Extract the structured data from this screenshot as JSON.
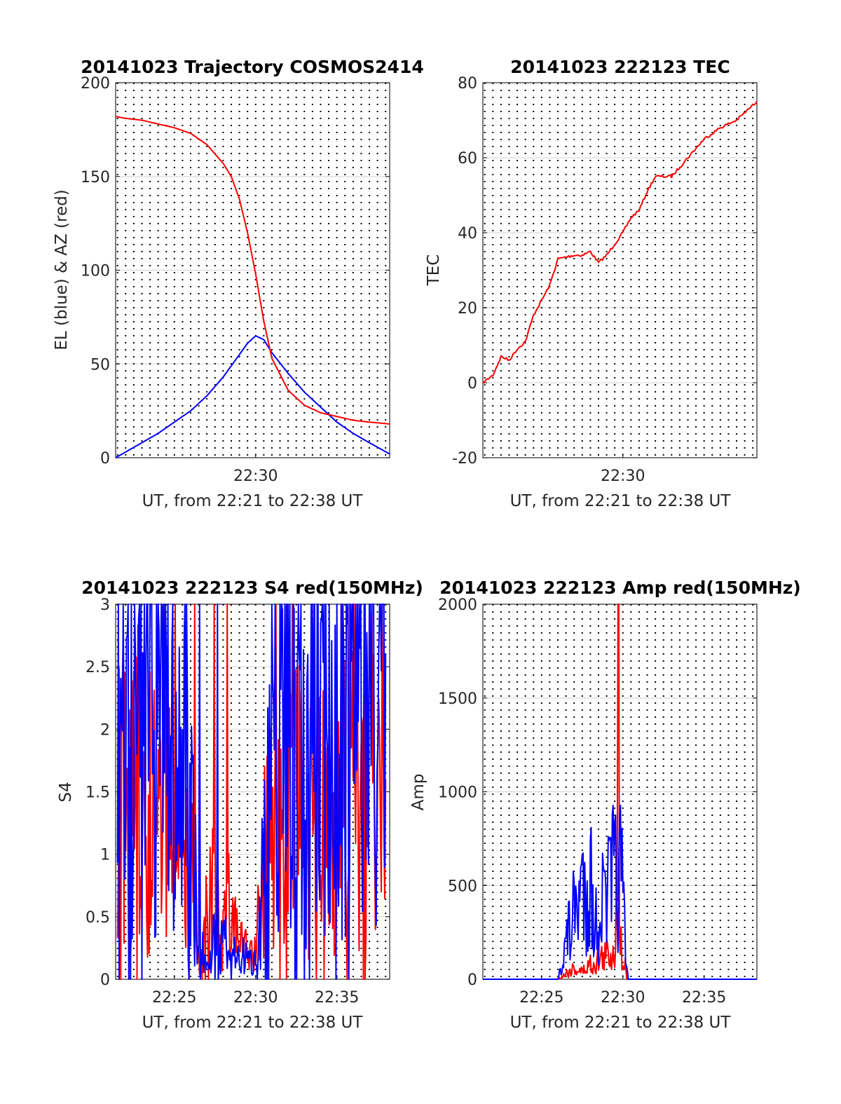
{
  "colors": {
    "el": "#0000ff",
    "az": "#ff0000",
    "series": "#ff0000",
    "grid": "#d9d9d9",
    "axis": "#262626"
  },
  "chart_data": [
    {
      "type": "line",
      "title": "20141023 Trajectory COSMOS2414",
      "xlabel": "UT, from 22:21 to 22:38 UT",
      "ylabel": "EL (blue) & AZ (red)",
      "xlim": [
        "22:21:23",
        "22:38:15"
      ],
      "ylim": [
        0,
        200
      ],
      "yticks": [
        0,
        50,
        100,
        150,
        200
      ],
      "xticks": [
        "22:30"
      ],
      "grid": "dotted vertical every 30 s, solid horizontal",
      "series": [
        {
          "color": "blue",
          "x": [
            "22:21:23",
            "22:23:00",
            "22:24:00",
            "22:25:00",
            "22:26:00",
            "22:27:00",
            "22:28:00",
            "22:29:00",
            "22:29:30",
            "22:30:00",
            "22:30:30",
            "22:31:00",
            "22:32:00",
            "22:33:00",
            "22:34:00",
            "22:35:00",
            "22:36:00",
            "22:37:00",
            "22:38:15"
          ],
          "values": [
            0,
            8,
            13,
            19,
            25,
            33,
            43,
            55,
            61,
            65,
            63,
            56,
            45,
            35,
            27,
            19,
            13,
            8,
            2
          ]
        },
        {
          "color": "red",
          "x": [
            "22:21:23",
            "22:22:00",
            "22:23:00",
            "22:24:00",
            "22:25:00",
            "22:26:00",
            "22:27:00",
            "22:28:00",
            "22:28:30",
            "22:29:00",
            "22:29:30",
            "22:30:00",
            "22:30:30",
            "22:31:00",
            "22:32:00",
            "22:33:00",
            "22:34:00",
            "22:35:00",
            "22:36:00",
            "22:37:00",
            "22:38:15"
          ],
          "values": [
            182,
            181,
            180,
            178,
            176,
            173,
            167,
            157,
            150,
            138,
            120,
            98,
            73,
            53,
            36,
            28,
            24,
            22,
            20,
            19,
            18
          ]
        }
      ]
    },
    {
      "type": "line",
      "title": "20141023 222123 TEC",
      "xlabel": "UT, from 22:21 to 22:38 UT",
      "ylabel": "TEC",
      "xlim": [
        "22:21:23",
        "22:38:15"
      ],
      "ylim": [
        -20,
        80
      ],
      "yticks": [
        -20,
        0,
        20,
        40,
        60,
        80
      ],
      "xticks": [
        "22:30"
      ],
      "series": [
        {
          "color": "red",
          "x": [
            "22:21:23",
            "22:22:00",
            "22:22:30",
            "22:23:00",
            "22:23:30",
            "22:24:00",
            "22:24:30",
            "22:25:00",
            "22:25:30",
            "22:26:00",
            "22:27:00",
            "22:27:30",
            "22:28:00",
            "22:28:30",
            "22:29:00",
            "22:29:30",
            "22:30:00",
            "22:30:30",
            "22:31:00",
            "22:31:30",
            "22:32:00",
            "22:33:00",
            "22:34:00",
            "22:35:00",
            "22:36:00",
            "22:37:00",
            "22:38:15"
          ],
          "values": [
            0,
            2,
            7,
            6,
            9,
            11,
            18,
            22,
            26,
            33,
            34,
            34,
            35,
            32,
            34,
            37,
            40,
            44,
            46,
            51,
            55,
            55,
            60,
            65,
            68,
            70,
            75
          ]
        }
      ]
    },
    {
      "type": "line",
      "title": "20141023 222123 S4 red(150MHz)",
      "xlabel": "UT, from 22:21 to 22:38 UT",
      "ylabel": "S4",
      "xlim": [
        "22:21:23",
        "22:38:15"
      ],
      "ylim": [
        0,
        3
      ],
      "yticks": [
        0,
        0.5,
        1,
        1.5,
        2,
        2.5,
        3
      ],
      "xticks": [
        "22:25",
        "22:30",
        "22:35"
      ],
      "series": [
        {
          "color": "red",
          "x": [
            "22:21:30",
            "22:22:00",
            "22:22:30",
            "22:23:00",
            "22:23:30",
            "22:24:00",
            "22:24:30",
            "22:25:00",
            "22:25:30",
            "22:26:00",
            "22:26:30",
            "22:27:00",
            "22:27:30",
            "22:28:00",
            "22:28:30",
            "22:29:00",
            "22:29:30",
            "22:30:00",
            "22:30:30",
            "22:31:00",
            "22:31:30",
            "22:32:00",
            "22:33:00",
            "22:34:00",
            "22:35:00",
            "22:36:00",
            "22:37:00",
            "22:38:00"
          ],
          "values": [
            1.3,
            1.5,
            1.4,
            1.6,
            1.4,
            1.3,
            1.2,
            1.1,
            1.0,
            0.9,
            0.2,
            0.5,
            0.7,
            0.4,
            0.6,
            0.3,
            0.2,
            0.2,
            0.9,
            1.1,
            1.5,
            1.4,
            1.3,
            1.2,
            1.3,
            1.4,
            1.6,
            1.6
          ]
        },
        {
          "color": "blue",
          "x": [
            "22:21:30",
            "22:22:00",
            "22:22:30",
            "22:23:00",
            "22:23:30",
            "22:24:00",
            "22:24:30",
            "22:25:00",
            "22:25:30",
            "22:26:00",
            "22:26:30",
            "22:27:00",
            "22:27:30",
            "22:28:00",
            "22:28:30",
            "22:29:00",
            "22:29:30",
            "22:30:00",
            "22:30:30",
            "22:31:00",
            "22:31:30",
            "22:32:00",
            "22:33:00",
            "22:34:00",
            "22:35:00",
            "22:36:00",
            "22:37:00",
            "22:38:00"
          ],
          "values": [
            1.8,
            2.3,
            2.0,
            2.4,
            2.2,
            1.9,
            2.1,
            1.8,
            1.6,
            1.5,
            0.2,
            0.2,
            0.3,
            0.3,
            0.2,
            0.2,
            0.15,
            0.15,
            1.0,
            1.6,
            2.5,
            2.4,
            2.2,
            2.1,
            2.5,
            2.3,
            2.4,
            2.6
          ]
        }
      ]
    },
    {
      "type": "line",
      "title": "20141023 222123 Amp red(150MHz)",
      "xlabel": "UT, from 22:21 to 22:38 UT",
      "ylabel": "Amp",
      "xlim": [
        "22:21:23",
        "22:38:15"
      ],
      "ylim": [
        0,
        2000
      ],
      "yticks": [
        0,
        500,
        1000,
        1500,
        2000
      ],
      "xticks": [
        "22:25",
        "22:30",
        "22:35"
      ],
      "series": [
        {
          "color": "red",
          "x": [
            "22:21:23",
            "22:26:00",
            "22:26:30",
            "22:27:00",
            "22:27:30",
            "22:28:00",
            "22:28:30",
            "22:29:00",
            "22:29:30",
            "22:29:45",
            "22:29:50",
            "22:30:00",
            "22:30:15",
            "22:31:00",
            "22:38:15"
          ],
          "values": [
            0,
            0,
            30,
            60,
            40,
            80,
            100,
            130,
            150,
            1780,
            200,
            180,
            0,
            0,
            0
          ]
        },
        {
          "color": "blue",
          "x": [
            "22:21:23",
            "22:26:00",
            "22:26:30",
            "22:27:00",
            "22:27:30",
            "22:28:00",
            "22:28:15",
            "22:28:30",
            "22:29:00",
            "22:29:30",
            "22:29:45",
            "22:30:00",
            "22:30:10",
            "22:30:20",
            "22:38:15"
          ],
          "values": [
            0,
            0,
            200,
            350,
            500,
            550,
            250,
            350,
            450,
            540,
            620,
            450,
            100,
            0,
            0
          ]
        }
      ]
    }
  ]
}
